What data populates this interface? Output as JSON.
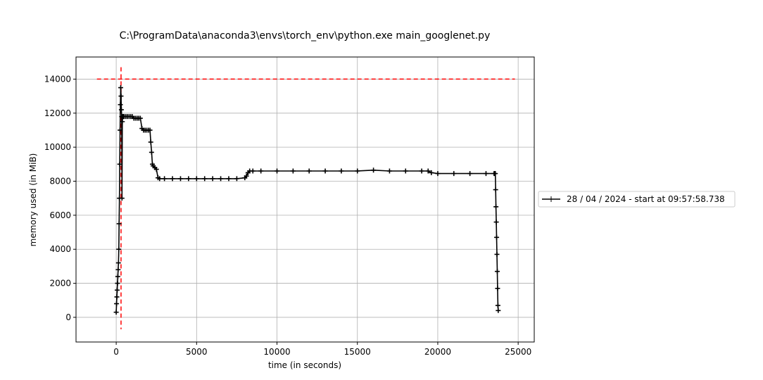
{
  "chart_data": {
    "type": "line",
    "title": "C:\\ProgramData\\anaconda3\\envs\\torch_env\\python.exe main_googlenet.py",
    "xlabel": "time (in seconds)",
    "ylabel": "memory used (in MiB)",
    "xlim": [
      -2500,
      26000
    ],
    "ylim": [
      -1450,
      15300
    ],
    "xticks": [
      0,
      5000,
      10000,
      15000,
      20000,
      25000
    ],
    "yticks": [
      0,
      2000,
      4000,
      6000,
      8000,
      10000,
      12000,
      14000
    ],
    "grid": true,
    "legend_position": "outside-right",
    "series": [
      {
        "name": "28 / 04 / 2024 - start at 09:57:58.738",
        "color": "#000000",
        "marker": "+",
        "x": [
          0,
          20,
          40,
          60,
          80,
          100,
          120,
          140,
          160,
          180,
          200,
          220,
          240,
          260,
          280,
          300,
          320,
          340,
          360,
          380,
          400,
          420,
          450,
          500,
          600,
          700,
          800,
          900,
          1000,
          1100,
          1200,
          1300,
          1400,
          1500,
          1600,
          1700,
          1800,
          1900,
          2000,
          2100,
          2150,
          2200,
          2250,
          2300,
          2400,
          2500,
          2600,
          2700,
          3000,
          3500,
          4000,
          4500,
          5000,
          5500,
          6000,
          6500,
          7000,
          7500,
          8000,
          8100,
          8200,
          8300,
          8500,
          9000,
          10000,
          11000,
          12000,
          13000,
          14000,
          15000,
          16000,
          17000,
          18000,
          19000,
          19400,
          19600,
          20000,
          21000,
          22000,
          23000,
          23500,
          23550,
          23580,
          23600,
          23620,
          23640,
          23660,
          23680,
          23700,
          23720,
          23740,
          23760
        ],
        "y": [
          300,
          800,
          1200,
          1600,
          2000,
          2400,
          2800,
          3200,
          4000,
          5500,
          7000,
          9000,
          11000,
          12500,
          13500,
          13000,
          12200,
          11800,
          7000,
          11500,
          11800,
          11800,
          11800,
          11800,
          11800,
          11800,
          11800,
          11800,
          11800,
          11700,
          11700,
          11700,
          11700,
          11700,
          11100,
          11000,
          11000,
          11000,
          11000,
          11000,
          10300,
          9700,
          9000,
          8900,
          8800,
          8700,
          8200,
          8150,
          8150,
          8150,
          8150,
          8150,
          8150,
          8150,
          8150,
          8150,
          8150,
          8150,
          8200,
          8300,
          8500,
          8600,
          8600,
          8600,
          8600,
          8600,
          8600,
          8600,
          8600,
          8600,
          8650,
          8600,
          8600,
          8600,
          8600,
          8500,
          8450,
          8450,
          8450,
          8450,
          8450,
          8450,
          8450,
          7500,
          6500,
          5600,
          4700,
          3700,
          2700,
          1700,
          700,
          400
        ]
      }
    ],
    "reference_lines": [
      {
        "orientation": "horizontal",
        "value": 14000,
        "color": "#ff0000",
        "style": "dashed"
      },
      {
        "orientation": "vertical",
        "value": 300,
        "color": "#ff0000",
        "style": "dashed"
      }
    ]
  }
}
